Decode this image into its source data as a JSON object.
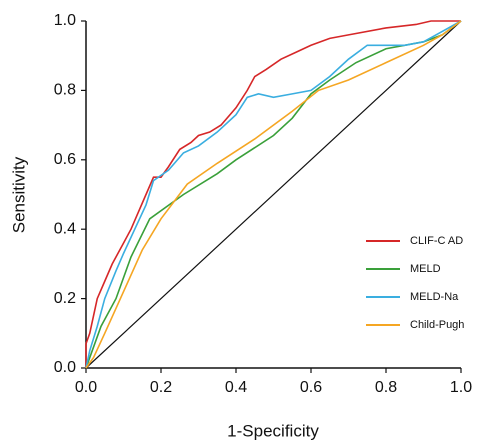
{
  "chart_data": {
    "type": "line",
    "xlabel": "1-Specificity",
    "ylabel": "Sensitivity",
    "xlim": [
      0,
      1
    ],
    "ylim": [
      0,
      1
    ],
    "xticks": [
      {
        "value": 0,
        "label": "0.0"
      },
      0.2,
      0.4,
      0.6,
      0.8,
      {
        "value": 1,
        "label": "1.0"
      }
    ],
    "yticks": [
      {
        "value": 0,
        "label": "0.0"
      },
      0.2,
      0.4,
      0.6,
      0.8,
      {
        "value": 1,
        "label": "1.0"
      }
    ],
    "legend": "lower right",
    "series": [
      {
        "name": "CLIF-C AD",
        "color": "#d62728",
        "x": [
          0,
          0,
          0.01,
          0.02,
          0.03,
          0.05,
          0.07,
          0.1,
          0.12,
          0.14,
          0.16,
          0.18,
          0.2,
          0.22,
          0.25,
          0.28,
          0.3,
          0.33,
          0.36,
          0.4,
          0.43,
          0.45,
          0.48,
          0.52,
          0.56,
          0.6,
          0.65,
          0.7,
          0.8,
          0.88,
          0.92,
          1
        ],
        "values": [
          0,
          0.07,
          0.1,
          0.15,
          0.2,
          0.25,
          0.3,
          0.36,
          0.4,
          0.45,
          0.5,
          0.55,
          0.55,
          0.58,
          0.63,
          0.65,
          0.67,
          0.68,
          0.7,
          0.75,
          0.8,
          0.84,
          0.86,
          0.89,
          0.91,
          0.93,
          0.95,
          0.96,
          0.98,
          0.99,
          1,
          1
        ]
      },
      {
        "name": "MELD",
        "color": "#3aa03a",
        "x": [
          0,
          0.02,
          0.04,
          0.08,
          0.12,
          0.17,
          0.26,
          0.35,
          0.4,
          0.5,
          0.55,
          0.6,
          0.65,
          0.72,
          0.8,
          0.9,
          0.95,
          1
        ],
        "values": [
          0,
          0.06,
          0.12,
          0.2,
          0.32,
          0.43,
          0.5,
          0.56,
          0.6,
          0.67,
          0.72,
          0.79,
          0.83,
          0.88,
          0.92,
          0.94,
          0.96,
          1
        ]
      },
      {
        "name": "MELD-Na",
        "color": "#3aaee0",
        "x": [
          0,
          0.01,
          0.03,
          0.05,
          0.08,
          0.1,
          0.13,
          0.16,
          0.18,
          0.22,
          0.26,
          0.3,
          0.35,
          0.4,
          0.43,
          0.46,
          0.5,
          0.55,
          0.6,
          0.65,
          0.7,
          0.75,
          0.85,
          0.9,
          0.95,
          1
        ],
        "values": [
          0,
          0.05,
          0.12,
          0.2,
          0.28,
          0.33,
          0.4,
          0.47,
          0.54,
          0.57,
          0.62,
          0.64,
          0.68,
          0.73,
          0.78,
          0.79,
          0.78,
          0.79,
          0.8,
          0.84,
          0.89,
          0.93,
          0.93,
          0.94,
          0.97,
          1
        ]
      },
      {
        "name": "Child-Pugh",
        "color": "#f5a623",
        "x": [
          0,
          0.02,
          0.05,
          0.1,
          0.15,
          0.2,
          0.27,
          0.35,
          0.45,
          0.55,
          0.62,
          0.7,
          0.8,
          0.9,
          0.95,
          1
        ],
        "values": [
          0,
          0.03,
          0.1,
          0.22,
          0.34,
          0.43,
          0.53,
          0.59,
          0.66,
          0.74,
          0.8,
          0.83,
          0.88,
          0.93,
          0.96,
          1
        ]
      }
    ]
  }
}
